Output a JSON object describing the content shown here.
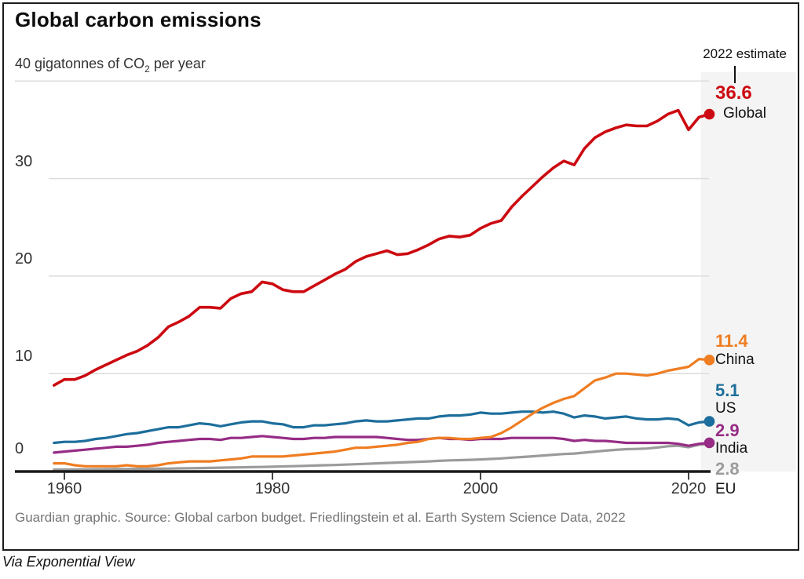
{
  "header": {
    "title": "Global carbon emissions"
  },
  "subtitle": {
    "prefix": "40 gigatonnes of CO",
    "subscript": "2",
    "suffix": " per year"
  },
  "annotation": {
    "estimate_label": "2022 estimate"
  },
  "y_axis": {
    "labels": [
      "30",
      "20",
      "10",
      "0"
    ]
  },
  "x_axis": {
    "labels": [
      "1960",
      "1980",
      "2000",
      "2020"
    ]
  },
  "footer": {
    "source": "Guardian graphic. Source: Global carbon budget. Friedlingstein et al. Earth System Science Data, 2022",
    "caption": "Via Exponential View"
  },
  "chart_data": {
    "type": "line",
    "title": "Global carbon emissions",
    "unit_label": "40 gigatonnes of CO2 per year",
    "x_start_year": 1959,
    "x_end_year": 2022,
    "xlim": [
      1959,
      2022
    ],
    "ylim": [
      0,
      40
    ],
    "y_ticks": [
      0,
      10,
      20,
      30,
      40
    ],
    "x_ticks": [
      1960,
      1980,
      2000,
      2020
    ],
    "grid": true,
    "legend_position": "right-end-labels",
    "estimate_band": {
      "label": "2022 estimate",
      "from_year": 2021,
      "to_year": 2022
    },
    "colors": {
      "grid": "#dcdcdc",
      "band": "#f4f4f4",
      "axis": "#1a1a1a",
      "tick": "#444444",
      "pointer": "#121212"
    },
    "series": [
      {
        "name": "Global",
        "color": "#cc0a11",
        "final_value": 36.6,
        "end_dot": true,
        "values": [
          8.8,
          9.4,
          9.4,
          9.8,
          10.4,
          10.9,
          11.4,
          11.9,
          12.3,
          12.9,
          13.7,
          14.8,
          15.3,
          15.9,
          16.8,
          16.8,
          16.7,
          17.7,
          18.2,
          18.4,
          19.4,
          19.2,
          18.6,
          18.4,
          18.4,
          19.0,
          19.6,
          20.2,
          20.7,
          21.5,
          22.0,
          22.3,
          22.6,
          22.2,
          22.3,
          22.7,
          23.2,
          23.8,
          24.1,
          24.0,
          24.2,
          24.9,
          25.4,
          25.7,
          27.1,
          28.2,
          29.2,
          30.2,
          31.1,
          31.8,
          31.4,
          33.1,
          34.2,
          34.8,
          35.2,
          35.5,
          35.4,
          35.4,
          35.9,
          36.6,
          37.0,
          35.0,
          36.3,
          36.6
        ]
      },
      {
        "name": "China",
        "color": "#ef7d22",
        "final_value": 11.4,
        "end_dot": true,
        "values": [
          0.8,
          0.8,
          0.6,
          0.5,
          0.5,
          0.5,
          0.5,
          0.6,
          0.5,
          0.5,
          0.6,
          0.8,
          0.9,
          1.0,
          1.0,
          1.0,
          1.1,
          1.2,
          1.3,
          1.5,
          1.5,
          1.5,
          1.5,
          1.6,
          1.7,
          1.8,
          1.9,
          2.0,
          2.2,
          2.4,
          2.4,
          2.5,
          2.6,
          2.7,
          2.9,
          3.0,
          3.3,
          3.4,
          3.4,
          3.3,
          3.3,
          3.4,
          3.5,
          3.9,
          4.5,
          5.2,
          5.9,
          6.5,
          7.0,
          7.4,
          7.7,
          8.5,
          9.3,
          9.6,
          10.0,
          10.0,
          9.9,
          9.8,
          10.0,
          10.3,
          10.5,
          10.7,
          11.5,
          11.4
        ]
      },
      {
        "name": "US",
        "color": "#1d6e9c",
        "final_value": 5.1,
        "end_dot": true,
        "values": [
          2.9,
          3.0,
          3.0,
          3.1,
          3.3,
          3.4,
          3.6,
          3.8,
          3.9,
          4.1,
          4.3,
          4.5,
          4.5,
          4.7,
          4.9,
          4.8,
          4.6,
          4.8,
          5.0,
          5.1,
          5.1,
          4.9,
          4.8,
          4.5,
          4.5,
          4.7,
          4.7,
          4.8,
          4.9,
          5.1,
          5.2,
          5.1,
          5.1,
          5.2,
          5.3,
          5.4,
          5.4,
          5.6,
          5.7,
          5.7,
          5.8,
          6.0,
          5.9,
          5.9,
          6.0,
          6.1,
          6.1,
          6.0,
          6.1,
          5.9,
          5.5,
          5.7,
          5.6,
          5.4,
          5.5,
          5.6,
          5.4,
          5.3,
          5.3,
          5.4,
          5.3,
          4.7,
          5.0,
          5.1
        ]
      },
      {
        "name": "India",
        "color": "#962c85",
        "final_value": 2.9,
        "end_dot": true,
        "values": [
          1.9,
          2.0,
          2.1,
          2.2,
          2.3,
          2.4,
          2.5,
          2.5,
          2.6,
          2.7,
          2.9,
          3.0,
          3.1,
          3.2,
          3.3,
          3.3,
          3.2,
          3.4,
          3.4,
          3.5,
          3.6,
          3.5,
          3.4,
          3.3,
          3.3,
          3.4,
          3.4,
          3.5,
          3.5,
          3.5,
          3.5,
          3.5,
          3.4,
          3.3,
          3.2,
          3.2,
          3.3,
          3.4,
          3.3,
          3.3,
          3.2,
          3.3,
          3.3,
          3.3,
          3.4,
          3.4,
          3.4,
          3.4,
          3.4,
          3.3,
          3.1,
          3.2,
          3.1,
          3.1,
          3.0,
          2.9,
          2.9,
          2.9,
          2.9,
          2.9,
          2.8,
          2.6,
          2.8,
          2.9
        ]
      },
      {
        "name": "EU",
        "color": "#9b9b9b",
        "final_value": 2.8,
        "end_dot": false,
        "values": [
          0.15,
          0.16,
          0.17,
          0.18,
          0.19,
          0.2,
          0.21,
          0.22,
          0.23,
          0.24,
          0.25,
          0.26,
          0.28,
          0.3,
          0.31,
          0.33,
          0.35,
          0.37,
          0.39,
          0.41,
          0.43,
          0.45,
          0.48,
          0.51,
          0.54,
          0.57,
          0.6,
          0.63,
          0.67,
          0.71,
          0.75,
          0.8,
          0.84,
          0.88,
          0.92,
          0.96,
          1.0,
          1.05,
          1.1,
          1.13,
          1.16,
          1.2,
          1.25,
          1.3,
          1.38,
          1.45,
          1.52,
          1.6,
          1.68,
          1.75,
          1.8,
          1.9,
          2.0,
          2.1,
          2.18,
          2.25,
          2.28,
          2.32,
          2.42,
          2.55,
          2.6,
          2.45,
          2.7,
          2.8
        ]
      }
    ]
  }
}
